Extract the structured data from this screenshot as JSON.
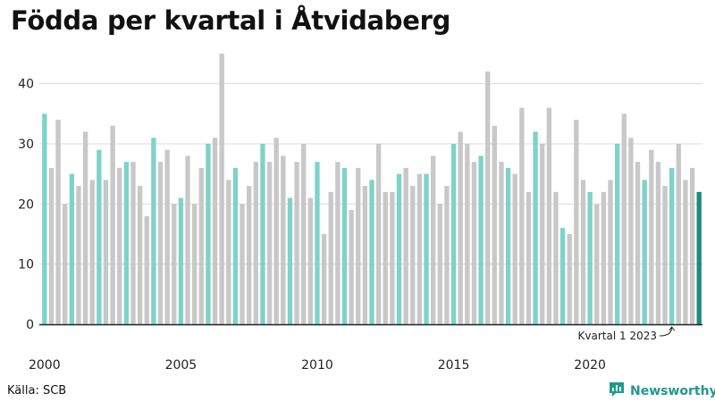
{
  "title": "Födda per kvartal i Åtvidaberg",
  "source": "Källa: SCB",
  "brand": {
    "name": "Newsworthy",
    "icon": "chart-logo-icon"
  },
  "colors": {
    "q1": "#7ed3c8",
    "other": "#c8c8c8",
    "highlight": "#1f8a7f",
    "grid": "#dddddd",
    "axis": "#222222",
    "brand": "#1f9a8e"
  },
  "chart_data": {
    "type": "bar",
    "y_ticks": [
      0,
      10,
      20,
      30,
      40
    ],
    "ylim": [
      0,
      45
    ],
    "x_labels": [
      "2000",
      "2005",
      "2010",
      "2015",
      "2020"
    ],
    "grid": true,
    "annotation": {
      "text": "Kvartal 1 2023"
    },
    "series": [
      {
        "year": 2000,
        "values": [
          35,
          26,
          34,
          20
        ]
      },
      {
        "year": 2001,
        "values": [
          25,
          23,
          32,
          24
        ]
      },
      {
        "year": 2002,
        "values": [
          29,
          24,
          33,
          26
        ]
      },
      {
        "year": 2003,
        "values": [
          27,
          27,
          23,
          18
        ]
      },
      {
        "year": 2004,
        "values": [
          31,
          27,
          29,
          20
        ]
      },
      {
        "year": 2005,
        "values": [
          21,
          28,
          20,
          26
        ]
      },
      {
        "year": 2006,
        "values": [
          30,
          31,
          45,
          24
        ]
      },
      {
        "year": 2007,
        "values": [
          26,
          20,
          23,
          27
        ]
      },
      {
        "year": 2008,
        "values": [
          30,
          27,
          31,
          28
        ]
      },
      {
        "year": 2009,
        "values": [
          21,
          27,
          30,
          21
        ]
      },
      {
        "year": 2010,
        "values": [
          27,
          15,
          22,
          27
        ]
      },
      {
        "year": 2011,
        "values": [
          26,
          19,
          26,
          23
        ]
      },
      {
        "year": 2012,
        "values": [
          24,
          30,
          22,
          22
        ]
      },
      {
        "year": 2013,
        "values": [
          25,
          26,
          23,
          25
        ]
      },
      {
        "year": 2014,
        "values": [
          25,
          28,
          20,
          23
        ]
      },
      {
        "year": 2015,
        "values": [
          30,
          32,
          30,
          27
        ]
      },
      {
        "year": 2016,
        "values": [
          28,
          42,
          33,
          27
        ]
      },
      {
        "year": 2017,
        "values": [
          26,
          25,
          36,
          22
        ]
      },
      {
        "year": 2018,
        "values": [
          32,
          30,
          36,
          22
        ]
      },
      {
        "year": 2019,
        "values": [
          16,
          15,
          34,
          24
        ]
      },
      {
        "year": 2020,
        "values": [
          22,
          20,
          22,
          24
        ]
      },
      {
        "year": 2021,
        "values": [
          30,
          35,
          31,
          27
        ]
      },
      {
        "year": 2022,
        "values": [
          24,
          29,
          27,
          23
        ]
      },
      {
        "year": 2023,
        "values": [
          26,
          30,
          24,
          26
        ]
      },
      {
        "year": 2024,
        "values": [
          22
        ]
      }
    ]
  }
}
